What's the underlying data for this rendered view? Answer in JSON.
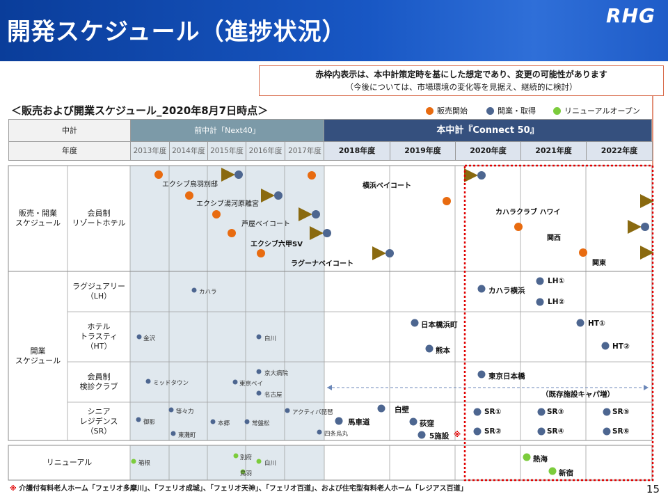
{
  "header": {
    "title": "開発スケジュール（進捗状況）",
    "logo": "RHG"
  },
  "note": {
    "line1": "赤枠内表示は、本中計策定時を基にした想定であり、変更の可能性があります",
    "line2": "（今後については、市場環境の変化等を見据え、継続的に検討）"
  },
  "subtitle": "＜販売および開業スケジュール_2020年8月7日時点＞",
  "legend": [
    {
      "label": "販売開始",
      "color": "#e86b10"
    },
    {
      "label": "開業・取得",
      "color": "#4d6690"
    },
    {
      "label": "リニューアルオープン",
      "color": "#7ccc3c"
    }
  ],
  "table": {
    "row_mid_label": "中計",
    "row_year_label": "年度",
    "prev_plan": "前中計「Next40」",
    "curr_plan": "本中計『Connect 50』",
    "prev_years": [
      "2013年度",
      "2014年度",
      "2015年度",
      "2016年度",
      "2017年度"
    ],
    "curr_years": [
      "2018年度",
      "2019年度",
      "2020年度",
      "2021年度",
      "2022年度"
    ],
    "section_sales": "販売・開業\nスケジュール",
    "resort_hotel": "会員制\nリゾートホテル",
    "section_open": "開業\nスケジュール",
    "lh": "ラグジュアリー\n（LH）",
    "ht": "ホテル\nトラスティ\n（HT）",
    "kenshin": "会員制\n検診クラブ",
    "sr": "シニア\nレジデンス\n（SR）",
    "renewal": "リニューアル"
  },
  "resort_bars": [
    "エクシブ鳥羽別邸",
    "エクシブ湯河原離宮",
    "芦屋ベイコート",
    "エクシブ六甲SV",
    "ラグーナベイコート",
    "横浜ベイコート",
    "カハラクラブ ハワイ",
    "関西",
    "関東"
  ],
  "lh_items": [
    "カハラ",
    "カハラ横浜",
    "LH①",
    "LH②"
  ],
  "ht_items": [
    "金沢",
    "白川",
    "日本橋浜町",
    "熊本",
    "HT①",
    "HT②"
  ],
  "kenshin_items": [
    "ミッドタウン",
    "東京ベイ",
    "京大病院",
    "名古屋",
    "東京日本橋",
    "（既存施設キャパ増）"
  ],
  "sr_items": [
    "御影",
    "等々力",
    "東灘町",
    "本郷",
    "常盤松",
    "アクティバ琵琶",
    "四条烏丸",
    "馬車道",
    "白壁",
    "荻窪",
    "5施設",
    "※",
    "SR①",
    "SR②",
    "SR③",
    "SR④",
    "SR⑤",
    "SR⑥"
  ],
  "renewal_items": [
    "箱根",
    "別府",
    "白川",
    "鳥羽",
    "熱海",
    "新宿"
  ],
  "footnote": {
    "mark": "※",
    "text": "介護付有料老人ホーム「フェリオ多摩川」、「フェリオ成城」、「フェリオ天神」、「フェリオ百道」、および住宅型有料老人ホーム「レジアス百道」"
  },
  "page_number": "15",
  "colors": {
    "sales_start": "#e86b10",
    "open": "#4d6690",
    "renewal": "#7ccc3c",
    "prev_header": "#7c9aa8",
    "curr_header": "#35507e",
    "prev_bg": "#e0e8ee",
    "red_frame": "#e00000"
  }
}
